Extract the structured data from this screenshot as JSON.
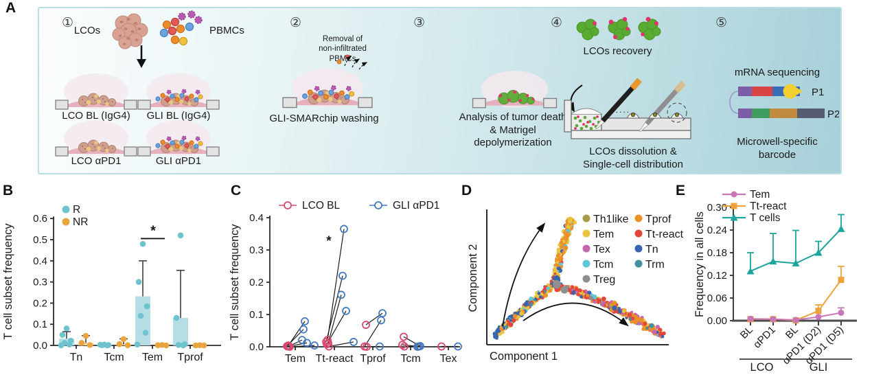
{
  "panel_labels": {
    "a": "A",
    "b": "B",
    "c": "C",
    "d": "D",
    "e": "E"
  },
  "panel_a": {
    "steps": [
      "①",
      "②",
      "③",
      "④",
      "⑤"
    ],
    "step1": {
      "lcos": "LCOs",
      "pbmcs": "PBMCs",
      "dish_labels": [
        "LCO BL (IgG4)",
        "GLI BL (IgG4)",
        "LCO αPD1",
        "GLI αPD1"
      ]
    },
    "step2": {
      "removal": "Removal of\nnon-infiltrated\nPBMCs",
      "caption": "GLI-SMARchip washing"
    },
    "step3": {
      "caption": "Analysis of tumor death\n& Matrigel\ndepolymerization"
    },
    "step4": {
      "recovery": "LCOs recovery",
      "dots": "......",
      "caption": "LCOs dissolution &\nSingle-cell distribution"
    },
    "step5": {
      "title": "mRNA sequencing",
      "p1": "P1",
      "p2": "P2",
      "caption": "Microwell-specific\nbarcode"
    }
  },
  "chart_data": [
    {
      "id": "b",
      "type": "bar",
      "panel": "B",
      "ylabel": "T cell subset frequency",
      "ylim": [
        0,
        0.6
      ],
      "yticks": [
        0,
        0.1,
        0.2,
        0.3,
        0.4,
        0.5,
        0.6
      ],
      "categories": [
        "Tn",
        "Tcm",
        "Tem",
        "Tprof"
      ],
      "legend": [
        {
          "name": "R",
          "color": "#6fc3ce"
        },
        {
          "name": "NR",
          "color": "#eaa43e"
        }
      ],
      "series": [
        {
          "name": "R",
          "color": "#6fc3ce",
          "bar_fill": "#b5dde4",
          "means": [
            0.032,
            0.003,
            0.232,
            0.13
          ],
          "err_top": [
            0.065,
            0.008,
            0.4,
            0.355
          ],
          "points": [
            [
              0.08,
              0.05,
              0.022,
              0.012,
              0.004,
              0
            ],
            [
              0.004,
              0.003,
              0.002,
              0.001,
              0
            ],
            [
              0.48,
              0.3,
              0.185,
              0.14,
              0.06,
              0.004
            ],
            [
              0.52,
              0.13,
              0.006,
              0.002,
              0
            ]
          ]
        },
        {
          "name": "NR",
          "color": "#eaa43e",
          "bar_fill": "#f4d8a9",
          "means": [
            0.012,
            0.005,
            0.001,
            0.001
          ],
          "err_top": [
            0.046,
            0.031,
            0.002,
            0.002
          ],
          "points": [
            [
              0.045,
              0.012,
              0.002
            ],
            [
              0.03,
              0.006,
              0.001
            ],
            [
              0.002,
              0.001,
              0
            ],
            [
              0.001,
              0,
              0
            ]
          ]
        }
      ],
      "significance": [
        {
          "category": "Tem",
          "label": "*",
          "line_y": 0.505
        }
      ]
    },
    {
      "id": "c",
      "type": "paired-scatter",
      "panel": "C",
      "ylabel": "T cell subset frequency",
      "ylim": [
        0,
        0.4
      ],
      "yticks": [
        0,
        0.1,
        0.2,
        0.3,
        0.4
      ],
      "categories": [
        "Tem",
        "Tt-react",
        "Tprof",
        "Tcm",
        "Tex"
      ],
      "legend": [
        {
          "name": "LCO BL",
          "color": "#d6496d"
        },
        {
          "name": "GLI αPD1",
          "color": "#4479bd"
        }
      ],
      "pairs": [
        [
          [
            0.004,
            0.079
          ],
          [
            0.002,
            0.054
          ],
          [
            0.002,
            0.021
          ],
          [
            0.001,
            0.012
          ],
          [
            0,
            0.004
          ]
        ],
        [
          [
            0.021,
            0.365
          ],
          [
            0.015,
            0.22
          ],
          [
            0.012,
            0.161
          ],
          [
            0.008,
            0.111
          ],
          [
            0.001,
            0.015
          ]
        ],
        [
          [
            0.068,
            0.104
          ],
          [
            0.001,
            0.082
          ],
          [
            0,
            0.001
          ]
        ],
        [
          [
            0.031,
            0.002
          ],
          [
            0.006,
            0.001
          ],
          [
            0.001,
            0
          ]
        ],
        [
          [
            0.001,
            0.001
          ]
        ]
      ],
      "significance": [
        {
          "category": "Tt-react",
          "label": "*",
          "y": 0.315
        }
      ]
    },
    {
      "id": "d",
      "type": "scatter",
      "variant": "pseudotime-trajectory",
      "panel": "D",
      "xlabel": "Component 1",
      "ylabel": "Component 2",
      "legend": [
        {
          "name": "Th1like",
          "color": "#a89b4a"
        },
        {
          "name": "Tem",
          "color": "#eac33f"
        },
        {
          "name": "Tex",
          "color": "#c469ae"
        },
        {
          "name": "Tcm",
          "color": "#62c6d6"
        },
        {
          "name": "Treg",
          "color": "#8f8f8f"
        },
        {
          "name": "Tprof",
          "color": "#ec9129"
        },
        {
          "name": "Tt-react",
          "color": "#e2463d"
        },
        {
          "name": "Tn",
          "color": "#3a63ae"
        },
        {
          "name": "Trm",
          "color": "#43909f"
        }
      ],
      "legend_columns": [
        [
          "Th1like",
          "Tem",
          "Tex",
          "Tcm",
          "Treg"
        ],
        [
          "Tprof",
          "Tt-react",
          "Tn",
          "Trm"
        ]
      ],
      "description": "Y-shaped pseudotime trajectory: mixed root branch from lower-left to central branch point; upper branch enriched in Tem/Tprof; lower-right branch enriched in Tt-react transitioning to Tprof/Tex.",
      "branches": [
        {
          "name": "root",
          "path": [
            [
              52,
              224
            ],
            [
              96,
              182
            ],
            [
              140,
              148
            ]
          ],
          "n": 250,
          "spread": 4.4,
          "weights_start": {
            "Tn": 0.3,
            "Tem": 0.27,
            "Tprof": 0.15,
            "Tt-react": 0.11,
            "Tcm": 0.07,
            "Trm": 0.04,
            "Th1like": 0.03,
            "Treg": 0.03
          },
          "weights_end": {
            "Tn": 0.2,
            "Tem": 0.35,
            "Tprof": 0.18,
            "Tt-react": 0.13,
            "Tcm": 0.07,
            "Trm": 0.04,
            "Th1like": 0.02,
            "Treg": 0.01
          }
        },
        {
          "name": "upper",
          "path": [
            [
              141,
              146
            ],
            [
              147,
              94
            ],
            [
              166,
              54
            ]
          ],
          "n": 240,
          "spread": 4.6,
          "weights_start": {
            "Tem": 0.4,
            "Tprof": 0.33,
            "Tcm": 0.1,
            "Tt-react": 0.09,
            "Tn": 0.08
          },
          "weights_end": {
            "Tprof": 0.52,
            "Tem": 0.4,
            "Tcm": 0.05,
            "Tn": 0.03
          }
        },
        {
          "name": "lower",
          "path": [
            [
              142,
              150
            ],
            [
              222,
              174
            ],
            [
              298,
              224
            ]
          ],
          "n": 330,
          "spread": 5.2,
          "weights_start": {
            "Tt-react": 0.58,
            "Tprof": 0.14,
            "Tem": 0.08,
            "Tn": 0.08,
            "Treg": 0.05,
            "Tcm": 0.04,
            "Tex": 0.03
          },
          "weights_end": {
            "Tprof": 0.42,
            "Tex": 0.2,
            "Tt-react": 0.16,
            "Tn": 0.1,
            "Trm": 0.06,
            "Tem": 0.06
          }
        }
      ],
      "node_markers": [
        {
          "x": 143,
          "y": 149,
          "r": 6,
          "name": "Treg"
        },
        {
          "x": 154,
          "y": 157,
          "r": 5.5,
          "name": "Treg"
        }
      ],
      "flow_arrows": [
        "M 64,210 Q 80,118 124,62",
        "M 94,202 Q 170,148 245,208"
      ]
    },
    {
      "id": "e",
      "type": "line",
      "panel": "E",
      "ylabel": "Frequency in all cells",
      "ylim": [
        0,
        0.3
      ],
      "yticks": [
        0,
        0.06,
        0.12,
        0.18,
        0.24,
        0.3
      ],
      "categories": [
        "BL",
        "αPD1",
        "BL",
        "αPD1 (D2)",
        "αPD1 (D5)"
      ],
      "groups": [
        {
          "label": "LCO",
          "from": 0,
          "to": 1
        },
        {
          "label": "GLI",
          "from": 2,
          "to": 4
        }
      ],
      "series": [
        {
          "name": "Tem",
          "color": "#c876b5",
          "marker": "circle",
          "values": [
            0.005,
            0.004,
            0.002,
            0.01,
            0.021
          ],
          "err_up": [
            0,
            0,
            0,
            0,
            0.013
          ]
        },
        {
          "name": "Tt-react",
          "color": "#eca33d",
          "marker": "square",
          "values": [
            0.004,
            0.004,
            0.001,
            0.026,
            0.108
          ],
          "err_up": [
            0,
            0,
            0,
            0.016,
            0.036
          ]
        },
        {
          "name": "T cells",
          "color": "#1da49c",
          "marker": "triangle",
          "values": [
            0.131,
            0.157,
            0.152,
            0.18,
            0.243
          ],
          "err_up": [
            0.049,
            0.074,
            0.087,
            0.03,
            0.038
          ]
        }
      ],
      "legend_order": [
        "Tem",
        "Tt-react",
        "T cells"
      ]
    }
  ]
}
